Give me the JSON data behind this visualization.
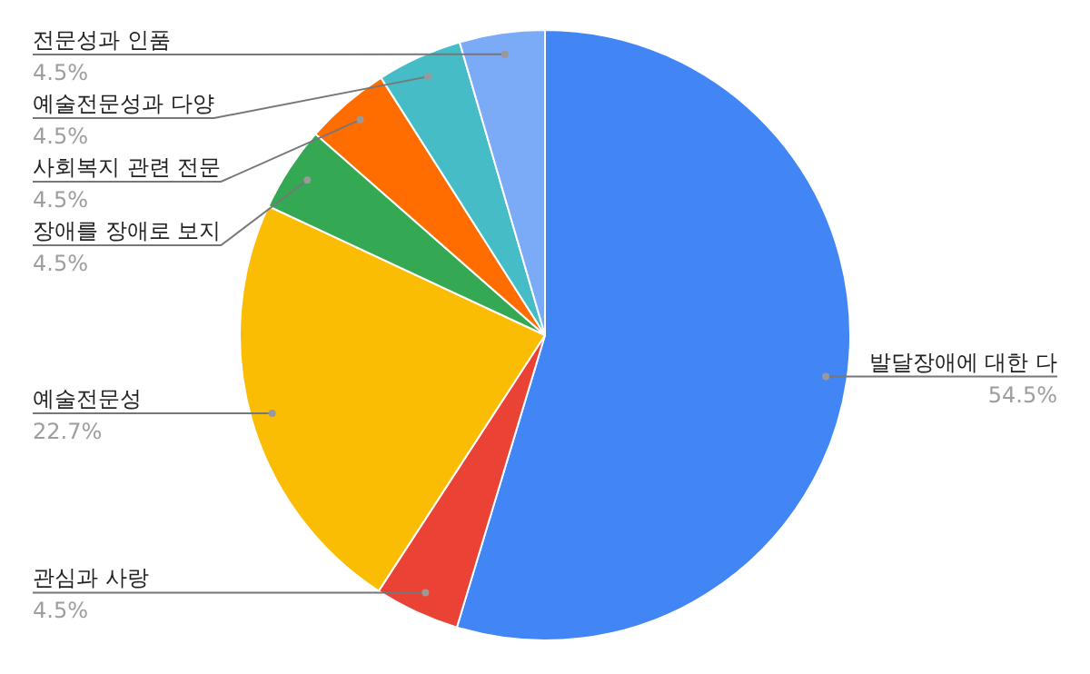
{
  "chart_data": {
    "type": "pie",
    "categories": [
      "발달장애에 대한 다",
      "관심과 사랑",
      "예술전문성",
      "장애를 장애로 보지",
      "사회복지 관련 전문",
      "예술전문성과 다양",
      "전문성과 인품"
    ],
    "values": [
      54.5,
      4.5,
      22.7,
      4.5,
      4.5,
      4.5,
      4.5
    ],
    "colors": [
      "#4285f4",
      "#ea4335",
      "#fbbc04",
      "#34a853",
      "#ff6d01",
      "#46bdc6",
      "#7baaf7"
    ],
    "value_labels": [
      "54.5%",
      "4.5%",
      "22.7%",
      "4.5%",
      "4.5%",
      "4.5%",
      "4.5%"
    ],
    "legend": false
  }
}
